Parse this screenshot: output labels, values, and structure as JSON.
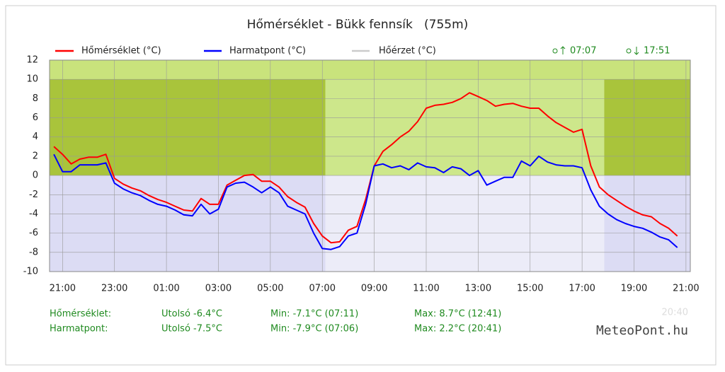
{
  "chart_data": {
    "type": "line",
    "title": "Hőmérséklet - Bükk fennsík   (755m)",
    "sunrise": "07:07",
    "sunset": "17:51",
    "x": [
      "20:40",
      "21:00",
      "21:20",
      "21:40",
      "22:00",
      "22:20",
      "22:40",
      "23:00",
      "23:20",
      "23:40",
      "00:00",
      "00:20",
      "00:40",
      "01:00",
      "01:20",
      "01:40",
      "02:00",
      "02:20",
      "02:40",
      "03:00",
      "03:20",
      "03:40",
      "04:00",
      "04:20",
      "04:40",
      "05:00",
      "05:20",
      "05:40",
      "06:00",
      "06:20",
      "06:40",
      "07:00",
      "07:20",
      "07:40",
      "08:00",
      "08:20",
      "08:40",
      "09:00",
      "09:20",
      "09:40",
      "10:00",
      "10:20",
      "10:40",
      "11:00",
      "11:20",
      "11:40",
      "12:00",
      "12:20",
      "12:40",
      "13:00",
      "13:20",
      "13:40",
      "14:00",
      "14:20",
      "14:40",
      "15:00",
      "15:20",
      "15:40",
      "16:00",
      "16:20",
      "16:40",
      "17:00",
      "17:20",
      "17:40",
      "18:00",
      "18:20",
      "18:40",
      "19:00",
      "19:20",
      "19:40",
      "20:00",
      "20:20",
      "20:40"
    ],
    "series": [
      {
        "name": "Hőmérséklet (°C)",
        "color": "#ff0000",
        "values": [
          3.0,
          2.2,
          1.2,
          1.7,
          1.9,
          1.9,
          2.2,
          -0.3,
          -0.9,
          -1.3,
          -1.6,
          -2.1,
          -2.5,
          -2.8,
          -3.2,
          -3.6,
          -3.7,
          -2.4,
          -3.0,
          -3.0,
          -1.0,
          -0.5,
          0.0,
          0.1,
          -0.6,
          -0.6,
          -1.2,
          -2.2,
          -2.8,
          -3.3,
          -5.0,
          -6.3,
          -7.0,
          -6.9,
          -5.7,
          -5.3,
          -2.5,
          1.0,
          2.5,
          3.2,
          4.0,
          4.6,
          5.6,
          7.0,
          7.3,
          7.4,
          7.6,
          8.0,
          8.6,
          8.2,
          7.8,
          7.2,
          7.4,
          7.5,
          7.2,
          7.0,
          7.0,
          6.2,
          5.5,
          5.0,
          4.5,
          4.8,
          1.0,
          -1.2,
          -2.0,
          -2.6,
          -3.2,
          -3.7,
          -4.1,
          -4.3,
          -5.0,
          -5.5,
          -6.3
        ]
      },
      {
        "name": "Harmatpont (°C)",
        "color": "#0000ff",
        "values": [
          2.2,
          0.4,
          0.4,
          1.1,
          1.1,
          1.1,
          1.3,
          -0.8,
          -1.4,
          -1.8,
          -2.1,
          -2.6,
          -3.0,
          -3.2,
          -3.6,
          -4.1,
          -4.2,
          -3.0,
          -4.0,
          -3.5,
          -1.2,
          -0.8,
          -0.7,
          -1.2,
          -1.8,
          -1.2,
          -1.8,
          -3.2,
          -3.6,
          -4.0,
          -6.0,
          -7.6,
          -7.7,
          -7.4,
          -6.3,
          -6.0,
          -3.0,
          1.0,
          1.2,
          0.8,
          1.0,
          0.6,
          1.3,
          0.9,
          0.8,
          0.3,
          0.9,
          0.7,
          0.0,
          0.5,
          -1.0,
          -0.6,
          -0.2,
          -0.2,
          1.5,
          1.0,
          2.0,
          1.4,
          1.1,
          1.0,
          1.0,
          0.8,
          -1.5,
          -3.2,
          -4.0,
          -4.6,
          -5.0,
          -5.3,
          -5.5,
          -5.9,
          -6.4,
          -6.7,
          -7.5
        ]
      },
      {
        "name": "Hőérzet (°C)",
        "color": "#cccccc",
        "values": [
          null,
          null,
          null,
          null,
          null,
          null,
          null,
          null,
          null,
          null,
          null,
          null,
          null,
          null,
          null,
          null,
          null,
          null,
          null,
          null,
          null,
          null,
          null,
          null,
          null,
          null,
          null,
          null,
          null,
          null,
          null,
          null,
          null,
          null,
          null,
          null,
          null,
          null,
          null,
          null,
          null,
          null,
          null,
          null,
          null,
          null,
          null,
          null,
          null,
          null,
          null,
          null,
          null,
          null,
          null,
          null,
          null,
          null,
          null,
          null,
          null,
          null,
          null,
          null,
          null,
          null,
          null,
          null,
          null,
          null,
          null,
          null,
          null
        ]
      }
    ],
    "xlim": [
      "20:30",
      "21:10"
    ],
    "xticks": [
      "21:00",
      "23:00",
      "01:00",
      "03:00",
      "05:00",
      "07:00",
      "09:00",
      "11:00",
      "13:00",
      "15:00",
      "17:00",
      "19:00",
      "21:00"
    ],
    "ylim": [
      -10,
      12
    ],
    "yticks": [
      -10,
      -8,
      -6,
      -4,
      -2,
      0,
      2,
      4,
      6,
      8,
      10,
      12
    ],
    "grid": true
  },
  "footer": {
    "rows": [
      {
        "name": "Hőmérséklet:",
        "last": "Utolsó -6.4°C",
        "min": "Min: -7.1°C (07:11)",
        "max": "Max: 8.7°C (12:41)"
      },
      {
        "name": "Harmatpont:",
        "last": "Utolsó -7.5°C",
        "min": "Min: -7.9°C (07:06)",
        "max": "Max: 2.2°C (20:41)"
      }
    ],
    "updated": "20:40",
    "brand": "MeteoPont.hu"
  }
}
